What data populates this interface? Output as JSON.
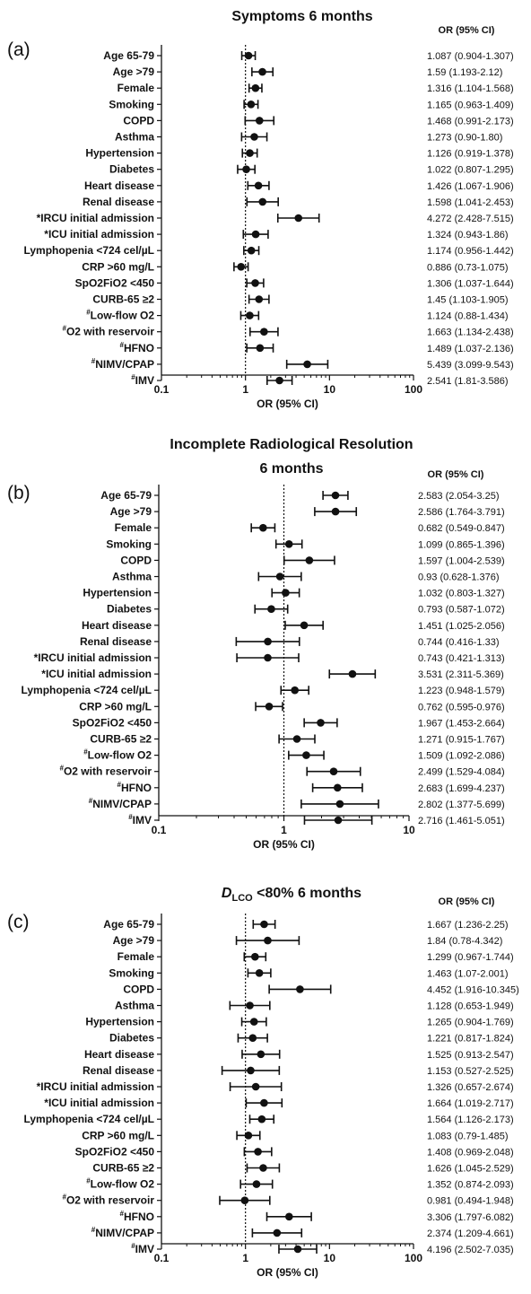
{
  "chart_data": [
    {
      "type": "forest",
      "panel_label": "(a)",
      "title": "Symptoms 6 months",
      "ci_header": "OR (95% CI)",
      "xlabel": "OR (95% CI)",
      "xscale": "log",
      "xlim": [
        0.1,
        100
      ],
      "xticks": [
        "0.1",
        "1",
        "10",
        "100"
      ],
      "reference_line": 1,
      "rows": [
        {
          "label": "Age 65-79",
          "or": 1.087,
          "lo": 0.904,
          "hi": 1.307,
          "ci_text": "1.087 (0.904-1.307)"
        },
        {
          "label": "Age >79",
          "or": 1.59,
          "lo": 1.193,
          "hi": 2.12,
          "ci_text": "1.59 (1.193-2.12)"
        },
        {
          "label": "Female",
          "or": 1.316,
          "lo": 1.104,
          "hi": 1.568,
          "ci_text": "1.316 (1.104-1.568)"
        },
        {
          "label": "Smoking",
          "or": 1.165,
          "lo": 0.963,
          "hi": 1.409,
          "ci_text": "1.165 (0.963-1.409)"
        },
        {
          "label": "COPD",
          "or": 1.468,
          "lo": 0.991,
          "hi": 2.173,
          "ci_text": "1.468 (0.991-2.173)"
        },
        {
          "label": "Asthma",
          "or": 1.273,
          "lo": 0.9,
          "hi": 1.8,
          "ci_text": "1.273 (0.90-1.80)"
        },
        {
          "label": "Hypertension",
          "or": 1.126,
          "lo": 0.919,
          "hi": 1.378,
          "ci_text": "1.126 (0.919-1.378)"
        },
        {
          "label": "Diabetes",
          "or": 1.022,
          "lo": 0.807,
          "hi": 1.295,
          "ci_text": "1.022 (0.807-1.295)"
        },
        {
          "label": "Heart disease",
          "or": 1.426,
          "lo": 1.067,
          "hi": 1.906,
          "ci_text": "1.426 (1.067-1.906)"
        },
        {
          "label": "Renal disease",
          "or": 1.598,
          "lo": 1.041,
          "hi": 2.453,
          "ci_text": "1.598 (1.041-2.453)"
        },
        {
          "label": "*IRCU initial admission",
          "or": 4.272,
          "lo": 2.428,
          "hi": 7.515,
          "ci_text": "4.272 (2.428-7.515)"
        },
        {
          "label": "*ICU initial admission",
          "or": 1.324,
          "lo": 0.943,
          "hi": 1.86,
          "ci_text": "1.324 (0.943-1.86)"
        },
        {
          "label": "Lymphopenia <724 cel/µL",
          "or": 1.174,
          "lo": 0.956,
          "hi": 1.442,
          "ci_text": "1.174 (0.956-1.442)"
        },
        {
          "label": "CRP >60 mg/L",
          "or": 0.886,
          "lo": 0.73,
          "hi": 1.075,
          "ci_text": "0.886 (0.73-1.075)"
        },
        {
          "label": "SpO2FiO2 <450",
          "or": 1.306,
          "lo": 1.037,
          "hi": 1.644,
          "ci_text": "1.306 (1.037-1.644)"
        },
        {
          "label": "CURB-65 ≥2",
          "or": 1.45,
          "lo": 1.103,
          "hi": 1.905,
          "ci_text": "1.45 (1.103-1.905)"
        },
        {
          "label": "#Low-flow O2",
          "or": 1.124,
          "lo": 0.88,
          "hi": 1.434,
          "ci_text": "1.124 (0.88-1.434)"
        },
        {
          "label": "#O2 with reservoir",
          "or": 1.663,
          "lo": 1.134,
          "hi": 2.438,
          "ci_text": "1.663 (1.134-2.438)"
        },
        {
          "label": "#HFNO",
          "or": 1.489,
          "lo": 1.037,
          "hi": 2.136,
          "ci_text": "1.489 (1.037-2.136)"
        },
        {
          "label": "#NIMV/CPAP",
          "or": 5.439,
          "lo": 3.099,
          "hi": 9.543,
          "ci_text": "5.439 (3.099-9.543)"
        },
        {
          "label": "#IMV",
          "or": 2.541,
          "lo": 1.81,
          "hi": 3.586,
          "ci_text": "2.541 (1.81-3.586)"
        }
      ]
    },
    {
      "type": "forest",
      "panel_label": "(b)",
      "title": "Incomplete Radiological Resolution",
      "title_line2": "6 months",
      "ci_header": "OR (95% CI)",
      "xlabel": "OR (95% CI)",
      "xscale": "log",
      "xlim": [
        0.1,
        10
      ],
      "xticks": [
        "0.1",
        "1",
        "10"
      ],
      "reference_line": 1,
      "rows": [
        {
          "label": "Age 65-79",
          "or": 2.583,
          "lo": 2.054,
          "hi": 3.25,
          "ci_text": "2.583 (2.054-3.25)"
        },
        {
          "label": "Age >79",
          "or": 2.586,
          "lo": 1.764,
          "hi": 3.791,
          "ci_text": "2.586 (1.764-3.791)"
        },
        {
          "label": "Female",
          "or": 0.682,
          "lo": 0.549,
          "hi": 0.847,
          "ci_text": "0.682 (0.549-0.847)"
        },
        {
          "label": "Smoking",
          "or": 1.099,
          "lo": 0.865,
          "hi": 1.396,
          "ci_text": "1.099 (0.865-1.396)"
        },
        {
          "label": "COPD",
          "or": 1.597,
          "lo": 1.004,
          "hi": 2.539,
          "ci_text": "1.597 (1.004-2.539)"
        },
        {
          "label": "Asthma",
          "or": 0.93,
          "lo": 0.628,
          "hi": 1.376,
          "ci_text": "0.93 (0.628-1.376)"
        },
        {
          "label": "Hypertension",
          "or": 1.032,
          "lo": 0.803,
          "hi": 1.327,
          "ci_text": "1.032 (0.803-1.327)"
        },
        {
          "label": "Diabetes",
          "or": 0.793,
          "lo": 0.587,
          "hi": 1.072,
          "ci_text": "0.793 (0.587-1.072)"
        },
        {
          "label": "Heart disease",
          "or": 1.451,
          "lo": 1.025,
          "hi": 2.056,
          "ci_text": "1.451 (1.025-2.056)"
        },
        {
          "label": "Renal disease",
          "or": 0.744,
          "lo": 0.416,
          "hi": 1.33,
          "ci_text": "0.744 (0.416-1.33)"
        },
        {
          "label": "*IRCU initial admission",
          "or": 0.743,
          "lo": 0.421,
          "hi": 1.313,
          "ci_text": "0.743 (0.421-1.313)"
        },
        {
          "label": "*ICU initial admission",
          "or": 3.531,
          "lo": 2.311,
          "hi": 5.369,
          "ci_text": "3.531 (2.311-5.369)"
        },
        {
          "label": "Lymphopenia <724 cel/µL",
          "or": 1.223,
          "lo": 0.948,
          "hi": 1.579,
          "ci_text": "1.223 (0.948-1.579)"
        },
        {
          "label": "CRP >60 mg/L",
          "or": 0.762,
          "lo": 0.595,
          "hi": 0.976,
          "ci_text": "0.762 (0.595-0.976)"
        },
        {
          "label": "SpO2FiO2 <450",
          "or": 1.967,
          "lo": 1.453,
          "hi": 2.664,
          "ci_text": "1.967 (1.453-2.664)"
        },
        {
          "label": "CURB-65 ≥2",
          "or": 1.271,
          "lo": 0.915,
          "hi": 1.767,
          "ci_text": "1.271 (0.915-1.767)"
        },
        {
          "label": "#Low-flow O2",
          "or": 1.509,
          "lo": 1.092,
          "hi": 2.086,
          "ci_text": "1.509 (1.092-2.086)"
        },
        {
          "label": "#O2 with reservoir",
          "or": 2.499,
          "lo": 1.529,
          "hi": 4.084,
          "ci_text": "2.499 (1.529-4.084)"
        },
        {
          "label": "#HFNO",
          "or": 2.683,
          "lo": 1.699,
          "hi": 4.237,
          "ci_text": "2.683 (1.699-4.237)"
        },
        {
          "label": "#NIMV/CPAP",
          "or": 2.802,
          "lo": 1.377,
          "hi": 5.699,
          "ci_text": "2.802 (1.377-5.699)"
        },
        {
          "label": "#IMV",
          "or": 2.716,
          "lo": 1.461,
          "hi": 5.051,
          "ci_text": "2.716 (1.461-5.051)"
        }
      ]
    },
    {
      "type": "forest",
      "panel_label": "(c)",
      "title_main": "D",
      "title_sub": "LCO",
      "title_rest": " <80% 6 months",
      "ci_header": "OR (95% CI)",
      "xlabel": "OR (95% CI)",
      "xscale": "log",
      "xlim": [
        0.1,
        100
      ],
      "xticks": [
        "0.1",
        "1",
        "10",
        "100"
      ],
      "reference_line": 1,
      "rows": [
        {
          "label": "Age 65-79",
          "or": 1.667,
          "lo": 1.236,
          "hi": 2.25,
          "ci_text": "1.667 (1.236-2.25)"
        },
        {
          "label": "Age >79",
          "or": 1.84,
          "lo": 0.78,
          "hi": 4.342,
          "ci_text": "1.84 (0.78-4.342)"
        },
        {
          "label": "Female",
          "or": 1.299,
          "lo": 0.967,
          "hi": 1.744,
          "ci_text": "1.299 (0.967-1.744)"
        },
        {
          "label": "Smoking",
          "or": 1.463,
          "lo": 1.07,
          "hi": 2.001,
          "ci_text": "1.463 (1.07-2.001)"
        },
        {
          "label": "COPD",
          "or": 4.452,
          "lo": 1.916,
          "hi": 10.345,
          "ci_text": "4.452 (1.916-10.345)"
        },
        {
          "label": "Asthma",
          "or": 1.128,
          "lo": 0.653,
          "hi": 1.949,
          "ci_text": "1.128 (0.653-1.949)"
        },
        {
          "label": "Hypertension",
          "or": 1.265,
          "lo": 0.904,
          "hi": 1.769,
          "ci_text": "1.265 (0.904-1.769)"
        },
        {
          "label": "Diabetes",
          "or": 1.221,
          "lo": 0.817,
          "hi": 1.824,
          "ci_text": "1.221 (0.817-1.824)"
        },
        {
          "label": "Heart disease",
          "or": 1.525,
          "lo": 0.913,
          "hi": 2.547,
          "ci_text": "1.525 (0.913-2.547)"
        },
        {
          "label": "Renal disease",
          "or": 1.153,
          "lo": 0.527,
          "hi": 2.525,
          "ci_text": "1.153 (0.527-2.525)"
        },
        {
          "label": "*IRCU initial admission",
          "or": 1.326,
          "lo": 0.657,
          "hi": 2.674,
          "ci_text": "1.326 (0.657-2.674)"
        },
        {
          "label": "*ICU initial admission",
          "or": 1.664,
          "lo": 1.019,
          "hi": 2.717,
          "ci_text": "1.664 (1.019-2.717)"
        },
        {
          "label": "Lymphopenia <724 cel/µL",
          "or": 1.564,
          "lo": 1.126,
          "hi": 2.173,
          "ci_text": "1.564 (1.126-2.173)"
        },
        {
          "label": "CRP >60 mg/L",
          "or": 1.083,
          "lo": 0.79,
          "hi": 1.485,
          "ci_text": "1.083 (0.79-1.485)"
        },
        {
          "label": "SpO2FiO2 <450",
          "or": 1.408,
          "lo": 0.969,
          "hi": 2.048,
          "ci_text": "1.408 (0.969-2.048)"
        },
        {
          "label": "CURB-65 ≥2",
          "or": 1.626,
          "lo": 1.045,
          "hi": 2.529,
          "ci_text": "1.626 (1.045-2.529)"
        },
        {
          "label": "#Low-flow O2",
          "or": 1.352,
          "lo": 0.874,
          "hi": 2.093,
          "ci_text": "1.352 (0.874-2.093)"
        },
        {
          "label": "#O2 with reservoir",
          "or": 0.981,
          "lo": 0.494,
          "hi": 1.948,
          "ci_text": "0.981 (0.494-1.948)"
        },
        {
          "label": "#HFNO",
          "or": 3.306,
          "lo": 1.797,
          "hi": 6.082,
          "ci_text": "3.306 (1.797-6.082)"
        },
        {
          "label": "#NIMV/CPAP",
          "or": 2.374,
          "lo": 1.209,
          "hi": 4.661,
          "ci_text": "2.374 (1.209-4.661)"
        },
        {
          "label": "#IMV",
          "or": 4.196,
          "lo": 2.502,
          "hi": 7.035,
          "ci_text": "4.196 (2.502-7.035)"
        }
      ]
    }
  ]
}
